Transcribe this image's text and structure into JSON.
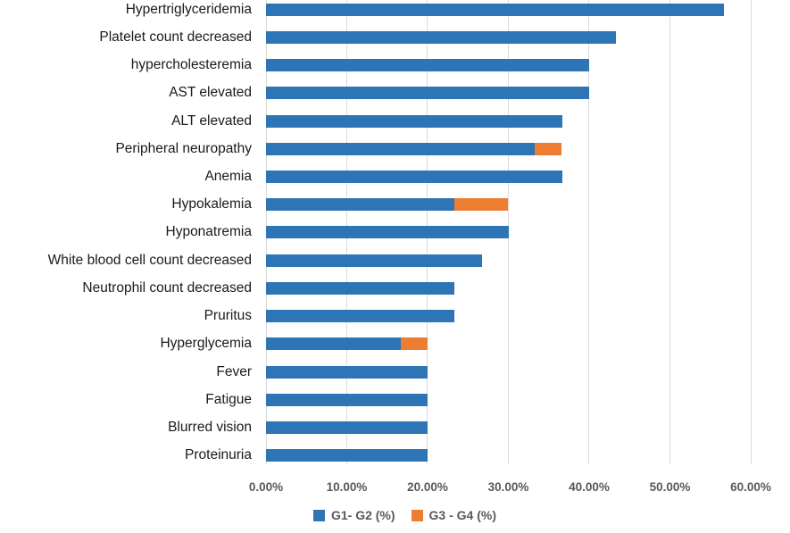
{
  "chart_data": {
    "type": "bar",
    "orientation": "horizontal",
    "stacked": true,
    "title": "",
    "xlabel": "",
    "ylabel": "",
    "xlim": [
      0,
      60
    ],
    "grid": true,
    "gridline_color": "#dadada",
    "legend_position": "bottom",
    "tick_label_color": "#595959",
    "category_label_color": "#1a1a1a",
    "categories": [
      "Hypertriglyceridemia",
      "Platelet count decreased",
      "hypercholesteremia",
      "AST elevated",
      "ALT elevated",
      "Peripheral neuropathy",
      "Anemia",
      "Hypokalemia",
      "Hyponatremia",
      "White blood cell count decreased",
      "Neutrophil count decreased",
      "Pruritus",
      "Hyperglycemia",
      "Fever",
      "Fatigue",
      "Blurred vision",
      "Proteinuria"
    ],
    "series": [
      {
        "name": "G1- G2 (%)",
        "color": "#2E75B6",
        "values": [
          56.7,
          43.3,
          40.0,
          40.0,
          36.7,
          33.3,
          36.7,
          23.3,
          30.0,
          26.7,
          23.3,
          23.3,
          16.7,
          20.0,
          20.0,
          20.0,
          20.0
        ]
      },
      {
        "name": "G3 - G4 (%)",
        "color": "#ED7D31",
        "values": [
          0,
          0,
          0,
          0,
          0,
          3.3,
          0,
          6.7,
          0,
          0,
          0,
          0,
          3.3,
          0,
          0,
          0,
          0
        ]
      }
    ],
    "x_ticks": [
      "0.00%",
      "10.00%",
      "20.00%",
      "30.00%",
      "40.00%",
      "50.00%",
      "60.00%"
    ]
  }
}
